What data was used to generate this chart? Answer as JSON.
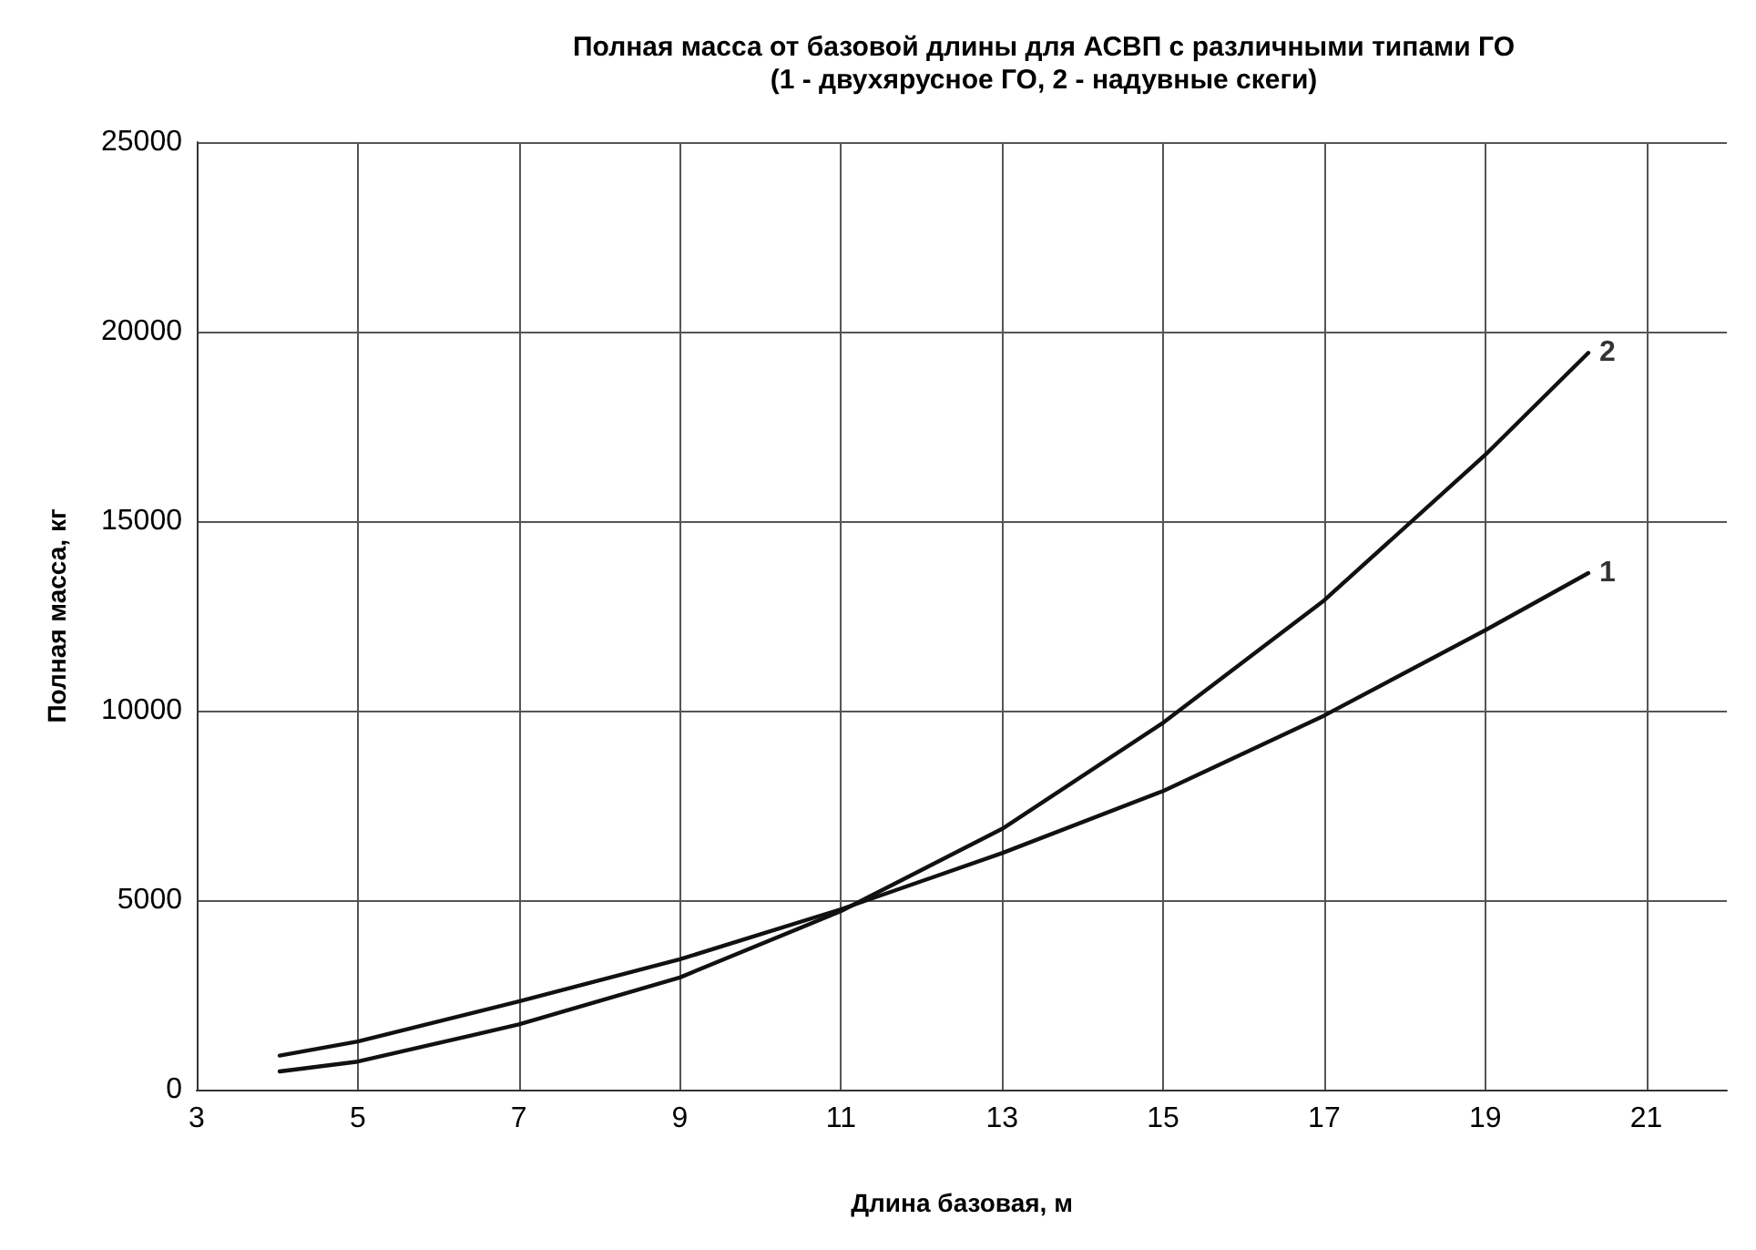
{
  "chart_data": {
    "type": "line",
    "title": "Полная масса от базовой длины для АСВП с различными типами ГО\n(1 - двухярусное ГО, 2 - надувные скеги)",
    "xlabel": "Длина базовая, м",
    "ylabel": "Полная масса, кг",
    "x": [
      4.03,
      5,
      7,
      9,
      11,
      13,
      15,
      17,
      19,
      20.28
    ],
    "series": [
      {
        "color": "#111111",
        "values": [
          900,
          1270,
          2330,
          3440,
          4760,
          6240,
          7880,
          9870,
          12120,
          13630
        ]
      },
      {
        "color": "#111111",
        "values": [
          480,
          740,
          1720,
          2960,
          4710,
          6880,
          9680,
          12910,
          16750,
          19440
        ]
      }
    ],
    "annotations": [
      {
        "text": "1",
        "x": 20.28,
        "y": 13630
      },
      {
        "text": "2",
        "x": 20.28,
        "y": 19440
      }
    ],
    "xlim": [
      3,
      22
    ],
    "xticks": [
      3,
      5,
      7,
      9,
      11,
      13,
      15,
      17,
      19,
      21
    ],
    "ylim": [
      0,
      25000
    ],
    "yticks": [
      0,
      5000,
      10000,
      15000,
      20000,
      25000
    ],
    "grid": true,
    "marker": "none",
    "line_style": "solid"
  }
}
